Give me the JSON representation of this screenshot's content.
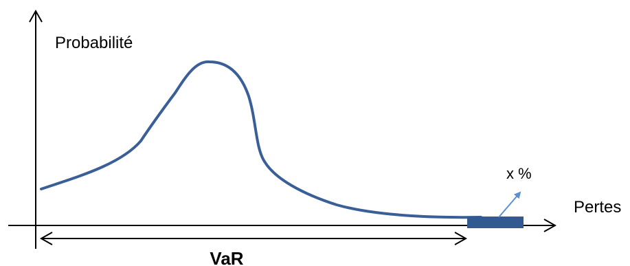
{
  "labels": {
    "y_axis": "Probabilité",
    "x_axis": "Pertes",
    "var": "VaR",
    "tail_percent": "x %"
  },
  "colors": {
    "curve": "#3a5f97",
    "tail_block": "#325a91",
    "pointer_arrow": "#5b8fce",
    "axes": "#000000"
  }
}
